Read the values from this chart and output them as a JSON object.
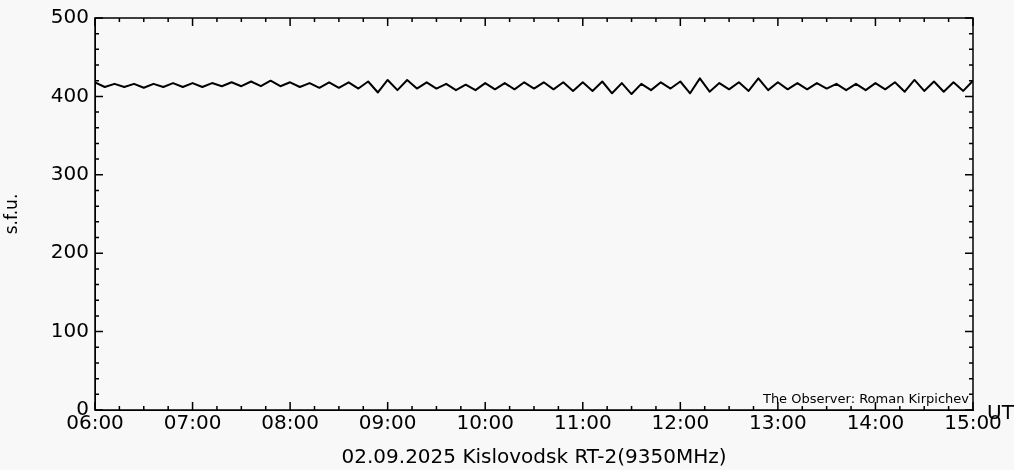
{
  "chart_data": {
    "type": "line",
    "xlabel": "02.09.2025 Kislovodsk RT-2(9350MHz)",
    "ylabel": "s.f.u.",
    "annotations": [
      "The Observer: Roman Kirpichev",
      "UT"
    ],
    "x": [
      6.0,
      6.1,
      6.2,
      6.3,
      6.4,
      6.5,
      6.6,
      6.7,
      6.8,
      6.9,
      7.0,
      7.1,
      7.2,
      7.3,
      7.4,
      7.5,
      7.6,
      7.7,
      7.8,
      7.9,
      8.0,
      8.1,
      8.2,
      8.3,
      8.4,
      8.5,
      8.6,
      8.7,
      8.8,
      8.9,
      9.0,
      9.1,
      9.2,
      9.3,
      9.4,
      9.5,
      9.6,
      9.7,
      9.8,
      9.9,
      10.0,
      10.1,
      10.2,
      10.3,
      10.4,
      10.5,
      10.6,
      10.7,
      10.8,
      10.9,
      11.0,
      11.1,
      11.2,
      11.3,
      11.4,
      11.5,
      11.6,
      11.7,
      11.8,
      11.9,
      12.0,
      12.1,
      12.2,
      12.3,
      12.4,
      12.5,
      12.6,
      12.7,
      12.8,
      12.9,
      13.0,
      13.1,
      13.2,
      13.3,
      13.4,
      13.5,
      13.6,
      13.7,
      13.8,
      13.9,
      14.0,
      14.1,
      14.2,
      14.3,
      14.4,
      14.5,
      14.6,
      14.7,
      14.8,
      14.9,
      15.0
    ],
    "series": [
      {
        "color": "#000000",
        "values": [
          418,
          412,
          416,
          412,
          416,
          411,
          416,
          412,
          417,
          412,
          417,
          412,
          417,
          413,
          418,
          413,
          419,
          413,
          420,
          413,
          418,
          412,
          417,
          411,
          418,
          411,
          418,
          410,
          419,
          405,
          421,
          408,
          421,
          410,
          418,
          410,
          416,
          408,
          415,
          408,
          417,
          409,
          417,
          409,
          418,
          410,
          418,
          409,
          418,
          407,
          418,
          407,
          419,
          404,
          417,
          403,
          416,
          408,
          418,
          410,
          419,
          404,
          423,
          406,
          417,
          409,
          418,
          407,
          423,
          408,
          418,
          409,
          417,
          409,
          417,
          410,
          416,
          408,
          416,
          408,
          417,
          409,
          418,
          406,
          421,
          407,
          419,
          406,
          418,
          407,
          420
        ]
      }
    ],
    "xlim": [
      6,
      15
    ],
    "xticks": [
      {
        "value": 6,
        "label": "06:00"
      },
      {
        "value": 6.25,
        "label": null
      },
      {
        "value": 6.5,
        "label": null
      },
      {
        "value": 6.75,
        "label": null
      },
      {
        "value": 7,
        "label": "07:00"
      },
      {
        "value": 7.25,
        "label": null
      },
      {
        "value": 7.5,
        "label": null
      },
      {
        "value": 7.75,
        "label": null
      },
      {
        "value": 8,
        "label": "08:00"
      },
      {
        "value": 8.25,
        "label": null
      },
      {
        "value": 8.5,
        "label": null
      },
      {
        "value": 8.75,
        "label": null
      },
      {
        "value": 9,
        "label": "09:00"
      },
      {
        "value": 9.25,
        "label": null
      },
      {
        "value": 9.5,
        "label": null
      },
      {
        "value": 9.75,
        "label": null
      },
      {
        "value": 10,
        "label": "10:00"
      },
      {
        "value": 10.25,
        "label": null
      },
      {
        "value": 10.5,
        "label": null
      },
      {
        "value": 10.75,
        "label": null
      },
      {
        "value": 11,
        "label": "11:00"
      },
      {
        "value": 11.25,
        "label": null
      },
      {
        "value": 11.5,
        "label": null
      },
      {
        "value": 11.75,
        "label": null
      },
      {
        "value": 12,
        "label": "12:00"
      },
      {
        "value": 12.25,
        "label": null
      },
      {
        "value": 12.5,
        "label": null
      },
      {
        "value": 12.75,
        "label": null
      },
      {
        "value": 13,
        "label": "13:00"
      },
      {
        "value": 13.25,
        "label": null
      },
      {
        "value": 13.5,
        "label": null
      },
      {
        "value": 13.75,
        "label": null
      },
      {
        "value": 14,
        "label": "14:00"
      },
      {
        "value": 14.25,
        "label": null
      },
      {
        "value": 14.5,
        "label": null
      },
      {
        "value": 14.75,
        "label": null
      },
      {
        "value": 15,
        "label": "15:00"
      }
    ],
    "ylim": [
      0,
      500
    ],
    "yticks": [
      0,
      {
        "value": 20,
        "label": null
      },
      {
        "value": 40,
        "label": null
      },
      {
        "value": 60,
        "label": null
      },
      {
        "value": 80,
        "label": null
      },
      100,
      {
        "value": 120,
        "label": null
      },
      {
        "value": 140,
        "label": null
      },
      {
        "value": 160,
        "label": null
      },
      {
        "value": 180,
        "label": null
      },
      200,
      {
        "value": 220,
        "label": null
      },
      {
        "value": 240,
        "label": null
      },
      {
        "value": 260,
        "label": null
      },
      {
        "value": 280,
        "label": null
      },
      300,
      {
        "value": 320,
        "label": null
      },
      {
        "value": 340,
        "label": null
      },
      {
        "value": 360,
        "label": null
      },
      {
        "value": 380,
        "label": null
      },
      400,
      {
        "value": 420,
        "label": null
      },
      {
        "value": 440,
        "label": null
      },
      {
        "value": 460,
        "label": null
      },
      {
        "value": 480,
        "label": null
      },
      500
    ],
    "grid": false,
    "legend": false,
    "marker": "none",
    "line_style": "solid"
  }
}
